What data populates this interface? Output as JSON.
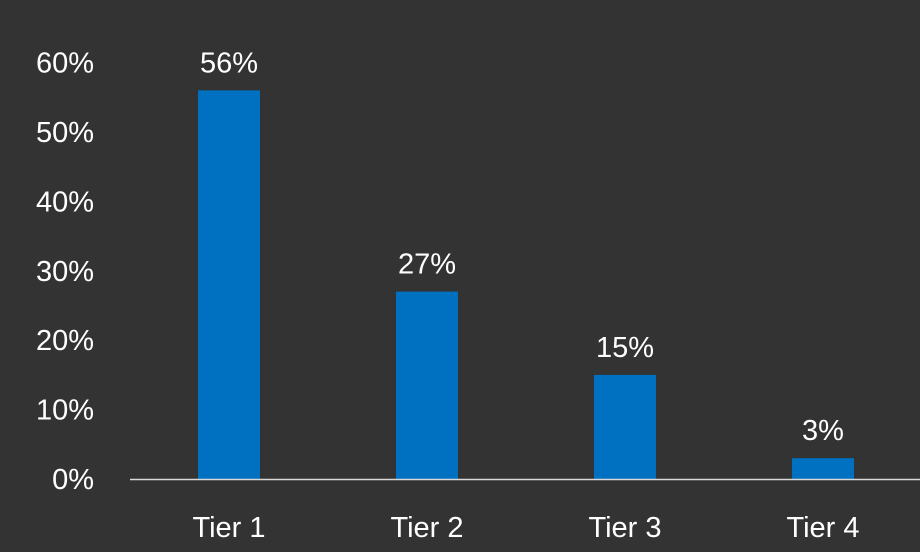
{
  "colors": {
    "background": "#333333",
    "bar": "#0070C0",
    "text": "#FFFFFF",
    "axis_line": "#D9D9D9"
  },
  "chart_data": {
    "type": "bar",
    "categories": [
      "Tier 1",
      "Tier 2",
      "Tier 3",
      "Tier 4"
    ],
    "values": [
      56,
      27,
      15,
      3
    ],
    "data_labels": [
      "56%",
      "27%",
      "15%",
      "3%"
    ],
    "y_ticks": [
      0,
      10,
      20,
      30,
      40,
      50,
      60
    ],
    "y_tick_labels": [
      "0%",
      "10%",
      "20%",
      "30%",
      "40%",
      "50%",
      "60%"
    ],
    "ylim": [
      0,
      60
    ],
    "grid": false,
    "legend": "none"
  }
}
